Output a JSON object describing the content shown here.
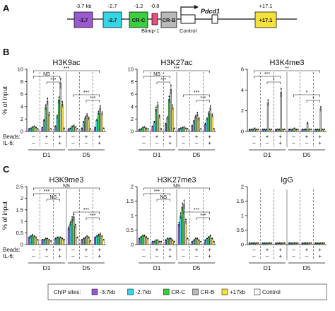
{
  "panels": {
    "A": "A",
    "B": "B",
    "C": "C"
  },
  "locus": {
    "gene_name": "Pdcd1",
    "tick_labels": [
      "-3.7 kb",
      "-2.7",
      "-1.2",
      "-0.8",
      "+17.1"
    ],
    "boxes": [
      {
        "label": "-3.7",
        "color": "#9b59d0"
      },
      {
        "label": "-2.7",
        "color": "#33d6e6"
      },
      {
        "label": "CR-C",
        "color": "#39cf3f"
      },
      {
        "label": "",
        "color": "#e0507a"
      },
      {
        "label": "CR-B",
        "color": "#b9b9b9"
      },
      {
        "label": "+17.1",
        "color": "#f4e23a"
      }
    ],
    "blimp_label": "Blimp-1",
    "control_label": "Control"
  },
  "row_labels": {
    "beads": "Beads:",
    "il6": "IL-6:",
    "beads_values": [
      "–",
      "+",
      "+",
      "–",
      "+",
      "+"
    ],
    "il6_values": [
      "–",
      "–",
      "+",
      "–",
      "–",
      "+"
    ],
    "day1": "D1",
    "day5": "D5"
  },
  "legend": {
    "title": "ChIP sites:",
    "items": [
      {
        "label": "-3.7kb",
        "color": "#9b59d0"
      },
      {
        "label": "-2.7kb",
        "color": "#33d6e6"
      },
      {
        "label": "CR-C",
        "color": "#39cf3f"
      },
      {
        "label": "CR-B",
        "color": "#b9b9b9"
      },
      {
        "label": "+17kb",
        "color": "#f4e23a"
      },
      {
        "label": "Control",
        "color": "#ffffff"
      }
    ]
  },
  "chart_data": [
    {
      "type": "bar",
      "title": "H3K9ac",
      "ylabel": "% of input",
      "ylim": [
        0,
        10
      ],
      "yticks": [
        0,
        2,
        4,
        6,
        8,
        10
      ],
      "categories": [
        "D1 –/–",
        "D1 +/–",
        "D1 +/+",
        "D5 –/–",
        "D5 +/–",
        "D5 +/+"
      ],
      "series": [
        {
          "name": "-3.7kb",
          "values": [
            0.4,
            0.6,
            0.8,
            0.4,
            0.5,
            0.6
          ]
        },
        {
          "name": "-2.7kb",
          "values": [
            0.5,
            1.8,
            2.4,
            0.5,
            1.5,
            1.8
          ]
        },
        {
          "name": "CR-C",
          "values": [
            0.7,
            3.9,
            5.1,
            0.8,
            2.2,
            3.0
          ]
        },
        {
          "name": "CR-B",
          "values": [
            0.8,
            4.9,
            7.8,
            0.9,
            2.6,
            3.8
          ]
        },
        {
          "name": "+17kb",
          "values": [
            0.6,
            2.8,
            4.4,
            0.7,
            2.1,
            2.9
          ]
        },
        {
          "name": "Control",
          "values": [
            0.4,
            0.4,
            0.5,
            0.4,
            0.4,
            0.5
          ]
        }
      ],
      "annotations": [
        "***",
        "NS",
        "***",
        "***",
        "***"
      ]
    },
    {
      "type": "bar",
      "title": "H3K27ac",
      "ylabel": "",
      "ylim": [
        0,
        10
      ],
      "yticks": [
        0,
        2,
        4,
        6,
        8,
        10
      ],
      "categories": [
        "D1 –/–",
        "D1 +/–",
        "D1 +/+",
        "D5 –/–",
        "D5 +/–",
        "D5 +/+"
      ],
      "series": [
        {
          "name": "-3.7kb",
          "values": [
            0.3,
            0.8,
            1.2,
            0.4,
            0.9,
            1.2
          ]
        },
        {
          "name": "-2.7kb",
          "values": [
            0.4,
            1.5,
            2.2,
            0.5,
            1.6,
            2.0
          ]
        },
        {
          "name": "CR-C",
          "values": [
            0.6,
            3.6,
            5.2,
            0.6,
            2.3,
            2.9
          ]
        },
        {
          "name": "CR-B",
          "values": [
            0.7,
            4.3,
            6.8,
            0.7,
            2.8,
            3.8
          ]
        },
        {
          "name": "+17kb",
          "values": [
            0.5,
            2.4,
            3.9,
            0.5,
            2.0,
            2.6
          ]
        },
        {
          "name": "Control",
          "values": [
            0.4,
            0.4,
            0.5,
            0.4,
            0.4,
            0.4
          ]
        }
      ],
      "annotations": [
        "***",
        "NS",
        "***",
        "***",
        "***"
      ]
    },
    {
      "type": "bar",
      "title": "H3K4me3",
      "ylabel": "",
      "ylim": [
        0,
        6
      ],
      "yticks": [
        0,
        2,
        4,
        6
      ],
      "categories": [
        "D1 –/–",
        "D1 +/–",
        "D1 +/+",
        "D5 –/–",
        "D5 +/–",
        "D5 +/+"
      ],
      "series": [
        {
          "name": "-3.7kb",
          "values": [
            0.2,
            0.2,
            0.2,
            0.2,
            0.2,
            0.2
          ]
        },
        {
          "name": "-2.7kb",
          "values": [
            0.2,
            0.2,
            0.2,
            0.2,
            0.2,
            0.2
          ]
        },
        {
          "name": "CR-C",
          "values": [
            0.2,
            0.2,
            0.2,
            0.2,
            0.2,
            0.2
          ]
        },
        {
          "name": "CR-B",
          "values": [
            0.3,
            2.8,
            3.8,
            0.3,
            0.8,
            2.2
          ]
        },
        {
          "name": "+17kb",
          "values": [
            0.2,
            0.2,
            0.2,
            0.2,
            0.2,
            0.2
          ]
        },
        {
          "name": "Control",
          "values": [
            0.2,
            0.2,
            0.2,
            0.2,
            0.2,
            0.2
          ]
        }
      ],
      "annotations": [
        "**",
        "***",
        "*",
        "*",
        "*"
      ]
    },
    {
      "type": "bar",
      "title": "H3K9me3",
      "ylabel": "% of input",
      "ylim": [
        0,
        2.5
      ],
      "yticks": [
        0,
        0.5,
        1.0,
        1.5,
        2.0,
        2.5
      ],
      "categories": [
        "D1 –/–",
        "D1 +/–",
        "D1 +/+",
        "D5 –/–",
        "D5 +/–",
        "D5 +/+"
      ],
      "series": [
        {
          "name": "-3.7kb",
          "values": [
            0.3,
            0.2,
            0.25,
            0.7,
            0.2,
            0.3
          ]
        },
        {
          "name": "-2.7kb",
          "values": [
            0.35,
            0.2,
            0.3,
            0.9,
            0.25,
            0.35
          ]
        },
        {
          "name": "CR-C",
          "values": [
            0.4,
            0.25,
            0.3,
            1.1,
            0.3,
            0.4
          ]
        },
        {
          "name": "CR-B",
          "values": [
            0.35,
            0.25,
            0.3,
            1.2,
            0.35,
            0.45
          ]
        },
        {
          "name": "+17kb",
          "values": [
            0.3,
            0.2,
            0.25,
            0.8,
            0.3,
            0.35
          ]
        },
        {
          "name": "Control",
          "values": [
            0.2,
            0.15,
            0.2,
            0.3,
            0.15,
            0.2
          ]
        }
      ],
      "annotations": [
        "NS",
        "***",
        "NS",
        "***",
        "***"
      ]
    },
    {
      "type": "bar",
      "title": "H3K27me3",
      "ylabel": "",
      "ylim": [
        0,
        2.0
      ],
      "yticks": [
        0,
        0.5,
        1.0,
        1.5,
        2.0
      ],
      "categories": [
        "D1 –/–",
        "D1 +/–",
        "D1 +/+",
        "D5 –/–",
        "D5 +/–",
        "D5 +/+"
      ],
      "series": [
        {
          "name": "-3.7kb",
          "values": [
            0.2,
            0.1,
            0.15,
            0.7,
            0.1,
            0.15
          ]
        },
        {
          "name": "-2.7kb",
          "values": [
            0.25,
            0.1,
            0.2,
            1.0,
            0.15,
            0.2
          ]
        },
        {
          "name": "CR-C",
          "values": [
            0.3,
            0.15,
            0.2,
            1.3,
            0.2,
            0.25
          ]
        },
        {
          "name": "CR-B",
          "values": [
            0.3,
            0.15,
            0.2,
            1.4,
            0.2,
            0.3
          ]
        },
        {
          "name": "+17kb",
          "values": [
            0.25,
            0.1,
            0.15,
            0.8,
            0.15,
            0.2
          ]
        },
        {
          "name": "Control",
          "values": [
            0.2,
            0.1,
            0.1,
            0.2,
            0.1,
            0.1
          ]
        }
      ],
      "annotations": [
        "NS",
        "***",
        "NS",
        "***",
        "***"
      ]
    },
    {
      "type": "bar",
      "title": "IgG",
      "ylabel": "",
      "ylim": [
        0,
        2.0
      ],
      "yticks": [
        0,
        0.5,
        1.0,
        1.5,
        2.0
      ],
      "categories": [
        "D1 –/–",
        "D1 +/–",
        "D1 +/+",
        "D5 –/–",
        "D5 +/–",
        "D5 +/+"
      ],
      "series": [
        {
          "name": "-3.7kb",
          "values": [
            0.05,
            0.05,
            0.05,
            0.05,
            0.05,
            0.05
          ]
        },
        {
          "name": "-2.7kb",
          "values": [
            0.05,
            0.05,
            0.05,
            0.05,
            0.05,
            0.05
          ]
        },
        {
          "name": "CR-C",
          "values": [
            0.05,
            0.05,
            0.05,
            0.05,
            0.05,
            0.05
          ]
        },
        {
          "name": "CR-B",
          "values": [
            0.05,
            0.05,
            0.05,
            0.05,
            0.05,
            0.05
          ]
        },
        {
          "name": "+17kb",
          "values": [
            0.05,
            0.05,
            0.05,
            0.05,
            0.05,
            0.05
          ]
        },
        {
          "name": "Control",
          "values": [
            0.05,
            0.05,
            0.05,
            0.05,
            0.05,
            0.05
          ]
        }
      ],
      "annotations": []
    }
  ]
}
